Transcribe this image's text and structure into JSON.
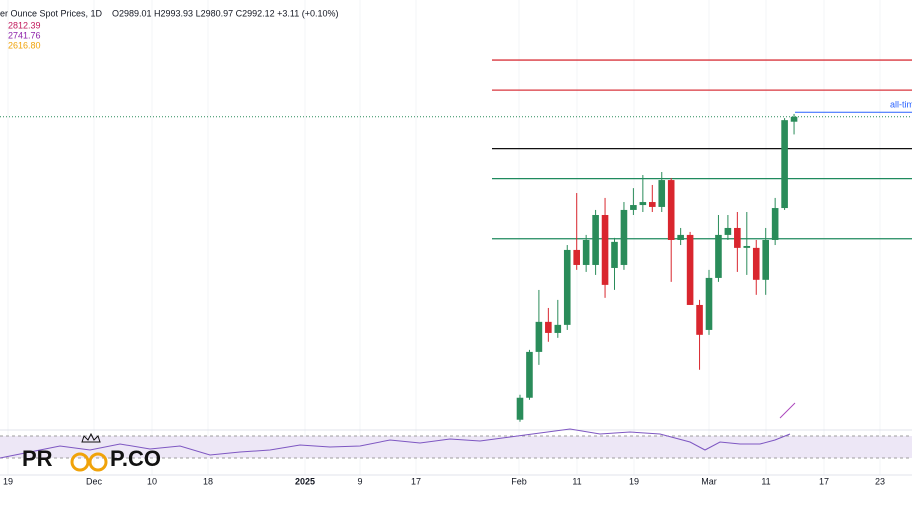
{
  "chart_data": {
    "type": "candlestick",
    "title": "er Ounce Spot Prices, 1D",
    "ohlc_text": "O2989.01 H2993.93 L2980.97 C2992.12 +3.11 (+0.10%)",
    "indicator_labels": [
      {
        "text": "2812.39",
        "color": "#c2185b"
      },
      {
        "text": "2741.76",
        "color": "#8e24aa"
      },
      {
        "text": "2616.80",
        "color": "#f0a30a"
      }
    ],
    "up_color": "#2a8c5a",
    "down_color": "#d9262e",
    "ylim": [
      2794,
      3066
    ],
    "open": [
      2800.5,
      2814.4,
      2843.4,
      2862.4,
      2855.4,
      2860.5,
      2907.9,
      2898.4,
      2898.4,
      2930,
      2896.5,
      2898.4,
      2933.2,
      2936.3,
      2938.2,
      2935.1,
      2952.1,
      2914.2,
      2917.4,
      2873.1,
      2857.3,
      2890.2,
      2917.4,
      2921.8,
      2909.2,
      2909.2,
      2889,
      2914.2,
      2934.4,
      2989.01
    ],
    "high": [
      2816.3,
      2844.7,
      2882.6,
      2871.2,
      2876.3,
      2911,
      2943.9,
      2917.4,
      2933.2,
      2940.8,
      2915.5,
      2938.2,
      2947,
      2955.3,
      2949,
      2957.2,
      2953.4,
      2921.8,
      2919.3,
      2876.3,
      2895.3,
      2930,
      2930,
      2931.9,
      2931.9,
      2914.2,
      2921.8,
      2940.8,
      2991.3,
      2993.93
    ],
    "low": [
      2799.2,
      2813.1,
      2835.2,
      2849.8,
      2852.3,
      2857.3,
      2895.3,
      2894,
      2892.1,
      2877.6,
      2882.6,
      2895.3,
      2930,
      2931.9,
      2931.9,
      2931.9,
      2887.7,
      2911,
      2873.1,
      2832.1,
      2854.2,
      2887.7,
      2914.2,
      2894,
      2892.1,
      2879.5,
      2879.5,
      2911,
      2933.2,
      2980.97
    ],
    "close": [
      2814.4,
      2843.4,
      2862.4,
      2855.4,
      2860.5,
      2907.9,
      2898.4,
      2914.2,
      2930,
      2885.8,
      2913,
      2933.2,
      2936.3,
      2938.2,
      2935.1,
      2952.1,
      2914.2,
      2917.4,
      2873.1,
      2854.2,
      2890.2,
      2917.4,
      2921.8,
      2909.2,
      2910.4,
      2889,
      2914.2,
      2934.4,
      2990,
      2992.12
    ],
    "levels": [
      {
        "value": 3028,
        "color": "#d9363e"
      },
      {
        "value": 3009,
        "color": "#d9363e"
      },
      {
        "value": 2972,
        "color": "#111111"
      },
      {
        "value": 2953,
        "color": "#1f8a5e"
      },
      {
        "value": 2915,
        "color": "#1f8a5e"
      }
    ],
    "annotation": {
      "text": "all-tim",
      "value": 2995,
      "color": "#2962ff"
    },
    "x_axis_labels": [
      "19",
      "Dec",
      "10",
      "18",
      "2025",
      "9",
      "17",
      "Feb",
      "11",
      "19",
      "Mar",
      "11",
      "17",
      "23"
    ],
    "logo": {
      "left": "PR",
      "right": "P.CO"
    }
  }
}
